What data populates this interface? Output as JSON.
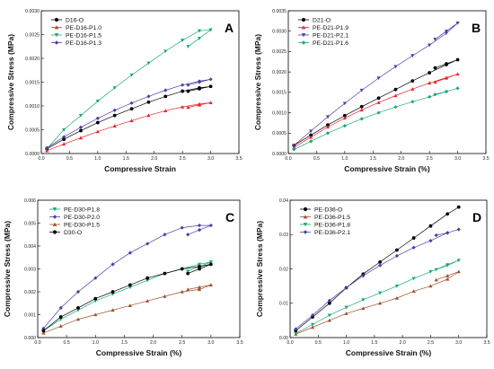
{
  "chart_data": [
    {
      "type": "line",
      "panel": "A",
      "xlabel": "Compressive Strain",
      "ylabel": "Compressive Stress (MPa)",
      "xlim": [
        0,
        3.5
      ],
      "ylim": [
        0,
        0.003
      ],
      "xticks": [
        "0.0",
        "0.5",
        "1.0",
        "1.5",
        "2.0",
        "2.5",
        "3.0",
        "3.5"
      ],
      "yticks": [
        "0.0000",
        "0.0005",
        "0.0010",
        "0.0015",
        "0.0020",
        "0.0025",
        "0.0030"
      ],
      "legend_position": "top-left",
      "grid": false,
      "series": [
        {
          "name": "D16-O",
          "color": "#000000",
          "marker": "circle",
          "x": [
            0.1,
            0.4,
            0.7,
            1.0,
            1.3,
            1.6,
            1.9,
            2.2,
            2.5,
            2.8,
            3.0,
            2.8,
            2.6
          ],
          "y": [
            0.0001,
            0.0003,
            0.00048,
            0.00065,
            0.0008,
            0.00094,
            0.00108,
            0.0012,
            0.00131,
            0.00138,
            0.00141,
            0.00136,
            0.00131
          ]
        },
        {
          "name": "PE-D16-P1.0",
          "color": "#e8262d",
          "marker": "triangle-up",
          "x": [
            0.1,
            0.4,
            0.7,
            1.0,
            1.3,
            1.6,
            1.9,
            2.2,
            2.5,
            2.8,
            3.0,
            2.8,
            2.6
          ],
          "y": [
            6e-05,
            0.0002,
            0.00033,
            0.00046,
            0.00058,
            0.00069,
            0.0008,
            0.0009,
            0.00098,
            0.00104,
            0.00107,
            0.00102,
            0.00097
          ]
        },
        {
          "name": "PE-D16-P1.5",
          "color": "#1aa878",
          "marker": "triangle-down",
          "x": [
            0.1,
            0.4,
            0.7,
            1.0,
            1.3,
            1.6,
            1.9,
            2.2,
            2.5,
            2.8,
            3.0,
            2.8,
            2.6
          ],
          "y": [
            0.0001,
            0.0005,
            0.0008,
            0.0011,
            0.00138,
            0.00165,
            0.0019,
            0.00215,
            0.00238,
            0.00258,
            0.0026,
            0.00242,
            0.00225
          ]
        },
        {
          "name": "PE-D16-P1.3",
          "color": "#4a3fa8",
          "marker": "diamond",
          "x": [
            0.1,
            0.4,
            0.7,
            1.0,
            1.3,
            1.6,
            1.9,
            2.2,
            2.5,
            2.8,
            3.0,
            2.8,
            2.6
          ],
          "y": [
            0.00012,
            0.00035,
            0.00055,
            0.00074,
            0.00091,
            0.00106,
            0.0012,
            0.00133,
            0.00144,
            0.00152,
            0.00156,
            0.0015,
            0.00144
          ]
        }
      ]
    },
    {
      "type": "line",
      "panel": "B",
      "xlabel": "Compressive Strain (%)",
      "ylabel": "Compressive Stress (MPa)",
      "xlim": [
        0,
        3.5
      ],
      "ylim": [
        0,
        0.0035
      ],
      "xticks": [
        "0.0",
        "0.5",
        "1.0",
        "1.5",
        "2.0",
        "2.5",
        "3.0",
        "3.5"
      ],
      "yticks": [
        "0.0000",
        "0.0005",
        "0.0010",
        "0.0015",
        "0.0020",
        "0.0025",
        "0.0030",
        "0.0035"
      ],
      "legend_position": "top-left",
      "grid": false,
      "series": [
        {
          "name": "D21-O",
          "color": "#000000",
          "marker": "circle",
          "x": [
            0.1,
            0.4,
            0.7,
            1.0,
            1.3,
            1.6,
            1.9,
            2.2,
            2.5,
            2.8,
            3.0,
            2.8,
            2.6
          ],
          "y": [
            0.0002,
            0.00045,
            0.0007,
            0.00093,
            0.00115,
            0.00136,
            0.00157,
            0.00178,
            0.00198,
            0.00218,
            0.0023,
            0.0022,
            0.0021
          ]
        },
        {
          "name": "PE-D21-P1.9",
          "color": "#e8262d",
          "marker": "triangle-up",
          "x": [
            0.1,
            0.4,
            0.7,
            1.0,
            1.3,
            1.6,
            1.9,
            2.2,
            2.5,
            2.8,
            3.0,
            2.8,
            2.6
          ],
          "y": [
            0.00015,
            0.0004,
            0.00065,
            0.00087,
            0.00107,
            0.00125,
            0.00142,
            0.00158,
            0.00173,
            0.00186,
            0.00195,
            0.00185,
            0.00175
          ]
        },
        {
          "name": "PE-D21-P2.1",
          "color": "#4a3fa8",
          "marker": "triangle-down",
          "x": [
            0.1,
            0.4,
            0.7,
            1.0,
            1.3,
            1.6,
            1.9,
            2.2,
            2.5,
            2.8,
            3.0,
            2.8,
            2.6
          ],
          "y": [
            0.0002,
            0.00055,
            0.0009,
            0.00123,
            0.00155,
            0.00185,
            0.00213,
            0.0024,
            0.00266,
            0.00295,
            0.0032,
            0.003,
            0.0028
          ]
        },
        {
          "name": "PE-D21-P1.6",
          "color": "#1aa878",
          "marker": "diamond",
          "x": [
            0.1,
            0.4,
            0.7,
            1.0,
            1.3,
            1.6,
            1.9,
            2.2,
            2.5,
            2.8,
            3.0,
            2.8,
            2.6
          ],
          "y": [
            0.0001,
            0.0003,
            0.0005,
            0.00068,
            0.00085,
            0.001,
            0.00114,
            0.00127,
            0.00139,
            0.00152,
            0.0016,
            0.00152,
            0.00145
          ]
        }
      ]
    },
    {
      "type": "line",
      "panel": "C",
      "xlabel": "Compressive Strain (%)",
      "ylabel": "Compressive Stress (MPa)",
      "xlim": [
        0,
        3.5
      ],
      "ylim": [
        0,
        0.006
      ],
      "xticks": [
        "0.0",
        "0.5",
        "1.0",
        "1.5",
        "2.0",
        "2.5",
        "3.0",
        "3.5"
      ],
      "yticks": [
        "0.000",
        "0.001",
        "0.002",
        "0.003",
        "0.004",
        "0.005",
        "0.006"
      ],
      "legend_position": "top-left",
      "grid": false,
      "series": [
        {
          "name": "PE-D30-P1.8",
          "color": "#1aa878",
          "marker": "triangle-down",
          "x": [
            0.1,
            0.4,
            0.7,
            1.0,
            1.3,
            1.6,
            1.9,
            2.2,
            2.5,
            2.8,
            3.0,
            2.8,
            2.6
          ],
          "y": [
            0.0003,
            0.0008,
            0.0012,
            0.0016,
            0.0019,
            0.0022,
            0.0025,
            0.0028,
            0.003,
            0.0032,
            0.0033,
            0.0031,
            0.0029
          ]
        },
        {
          "name": "PE-D30-P2.0",
          "color": "#4a3fa8",
          "marker": "diamond",
          "x": [
            0.1,
            0.4,
            0.7,
            1.0,
            1.3,
            1.6,
            1.9,
            2.2,
            2.5,
            2.8,
            3.0,
            2.8,
            2.6
          ],
          "y": [
            0.0004,
            0.0013,
            0.002,
            0.0026,
            0.0032,
            0.0037,
            0.0041,
            0.0045,
            0.0048,
            0.0049,
            0.0049,
            0.0047,
            0.0045
          ]
        },
        {
          "name": "PE-D30-P1.5",
          "color": "#a0522d",
          "marker": "triangle-up",
          "x": [
            0.1,
            0.4,
            0.7,
            1.0,
            1.3,
            1.6,
            1.9,
            2.2,
            2.5,
            2.8,
            3.0,
            2.8,
            2.6
          ],
          "y": [
            0.0002,
            0.0005,
            0.0008,
            0.001,
            0.0012,
            0.0014,
            0.0016,
            0.0018,
            0.002,
            0.0021,
            0.0023,
            0.0022,
            0.0021
          ]
        },
        {
          "name": "D30-O",
          "color": "#000000",
          "marker": "circle",
          "x": [
            0.1,
            0.4,
            0.7,
            1.0,
            1.3,
            1.6,
            1.9,
            2.2,
            2.5,
            2.8,
            3.0,
            2.8,
            2.6
          ],
          "y": [
            0.0003,
            0.0009,
            0.0013,
            0.0017,
            0.002,
            0.0023,
            0.0026,
            0.0028,
            0.003,
            0.0031,
            0.0032,
            0.003,
            0.0028
          ]
        }
      ]
    },
    {
      "type": "line",
      "panel": "D",
      "xlabel": "Compressive Strain (%)",
      "ylabel": "Compressive Stress (MPa)",
      "xlim": [
        0,
        3.5
      ],
      "ylim": [
        0,
        0.04
      ],
      "xticks": [
        "0.0",
        "0.5",
        "1.0",
        "1.5",
        "2.0",
        "2.5",
        "3.0",
        "3.5"
      ],
      "yticks": [
        "0.00",
        "0.01",
        "0.02",
        "0.03",
        "0.04"
      ],
      "legend_position": "top-left",
      "grid": false,
      "series": [
        {
          "name": "PE-D36-O",
          "color": "#000000",
          "marker": "circle",
          "x": [
            0.1,
            0.4,
            0.7,
            1.0,
            1.3,
            1.6,
            1.9,
            2.2,
            2.5,
            2.8,
            3.0
          ],
          "y": [
            0.002,
            0.006,
            0.01,
            0.0145,
            0.0185,
            0.022,
            0.0255,
            0.029,
            0.0325,
            0.036,
            0.038
          ]
        },
        {
          "name": "PE-D36-P1.5",
          "color": "#a0522d",
          "marker": "triangle-up",
          "x": [
            0.1,
            0.4,
            0.7,
            1.0,
            1.3,
            1.6,
            1.9,
            2.2,
            2.5,
            2.8,
            3.0,
            2.8,
            2.6
          ],
          "y": [
            0.001,
            0.003,
            0.005,
            0.007,
            0.0085,
            0.01,
            0.0115,
            0.0135,
            0.015,
            0.017,
            0.0192,
            0.018,
            0.0168
          ]
        },
        {
          "name": "PE-D36-P1.8",
          "color": "#1aa878",
          "marker": "triangle-down",
          "x": [
            0.1,
            0.4,
            0.7,
            1.0,
            1.3,
            1.6,
            1.9,
            2.2,
            2.5,
            2.8,
            3.0,
            2.8,
            2.6
          ],
          "y": [
            0.0012,
            0.0038,
            0.0065,
            0.0088,
            0.011,
            0.013,
            0.015,
            0.0172,
            0.0192,
            0.0212,
            0.0225,
            0.021,
            0.0198
          ]
        },
        {
          "name": "PE-D36-P2.1",
          "color": "#4a3fa8",
          "marker": "diamond",
          "x": [
            0.1,
            0.4,
            0.7,
            1.0,
            1.3,
            1.6,
            1.9,
            2.2,
            2.5,
            2.8,
            3.0,
            2.8,
            2.6
          ],
          "y": [
            0.0025,
            0.0065,
            0.0108,
            0.0145,
            0.018,
            0.021,
            0.0238,
            0.0262,
            0.0282,
            0.0305,
            0.0315,
            0.0305,
            0.0298
          ]
        }
      ]
    }
  ]
}
